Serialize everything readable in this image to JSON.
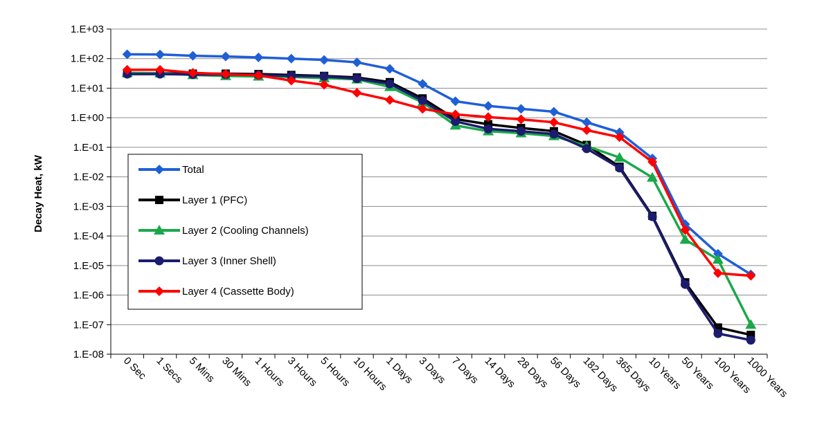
{
  "chart_data": {
    "type": "line",
    "title": "",
    "xlabel": "",
    "ylabel": "Decay Heat, kW",
    "yscale": "log",
    "ylim": [
      1e-08,
      1000
    ],
    "y_tick_labels": [
      "1.E+03",
      "1.E+02",
      "1.E+01",
      "1.E+00",
      "1.E-01",
      "1.E-02",
      "1.E-03",
      "1.E-04",
      "1.E-05",
      "1.E-06",
      "1.E-07",
      "1.E-08"
    ],
    "y_tick_values": [
      1000,
      100,
      10,
      1,
      0.1,
      0.01,
      0.001,
      0.0001,
      1e-05,
      1e-06,
      1e-07,
      1e-08
    ],
    "grid": true,
    "legend_position": "center-left",
    "categories": [
      "0 Sec",
      "1 Secs",
      "5 Mins",
      "30 Mins",
      "1 Hours",
      "3 Hours",
      "5 Hours",
      "10 Hours",
      "1 Days",
      "3 Days",
      "7 Days",
      "14 Days",
      "28 Days",
      "56 Days",
      "182 Days",
      "365 Days",
      "10 Years",
      "50 Years",
      "100 Years",
      "1000 Years"
    ],
    "series": [
      {
        "name": "Total",
        "color": "#1f5fd6",
        "marker": "diamond",
        "values": [
          140,
          138,
          125,
          118,
          110,
          100,
          90,
          75,
          45,
          14,
          3.6,
          2.5,
          2.0,
          1.6,
          0.7,
          0.32,
          0.042,
          0.00025,
          2.5e-05,
          5e-06
        ]
      },
      {
        "name": "Layer 1 (PFC)",
        "color": "#000000",
        "marker": "square",
        "values": [
          32,
          32,
          31,
          31,
          30,
          28,
          26,
          23,
          16,
          4.5,
          0.9,
          0.6,
          0.45,
          0.35,
          0.12,
          0.022,
          0.00048,
          2.7e-06,
          8e-08,
          4.5e-08
        ]
      },
      {
        "name": "Layer 2 (Cooling Channels)",
        "color": "#1aa84a",
        "marker": "triangle",
        "values": [
          33,
          32,
          28,
          26,
          25,
          24,
          22,
          20,
          11,
          3.3,
          0.55,
          0.35,
          0.3,
          0.24,
          0.11,
          0.045,
          0.0095,
          7.5e-05,
          1.6e-05,
          1e-07
        ]
      },
      {
        "name": "Layer 3 (Inner Shell)",
        "color": "#1c1c6e",
        "marker": "circle",
        "values": [
          30,
          30,
          29,
          29,
          28,
          26,
          25,
          21,
          14,
          3.8,
          0.75,
          0.42,
          0.35,
          0.28,
          0.09,
          0.02,
          0.00045,
          2.3e-06,
          5e-08,
          3e-08
        ]
      },
      {
        "name": "Layer 4 (Cassette Body)",
        "color": "#ff0000",
        "marker": "diamond",
        "values": [
          42,
          42,
          33,
          30,
          27,
          18,
          13,
          7,
          4,
          2,
          1.3,
          1.05,
          0.88,
          0.7,
          0.38,
          0.22,
          0.032,
          0.00016,
          5.5e-06,
          4.5e-06
        ]
      }
    ]
  }
}
